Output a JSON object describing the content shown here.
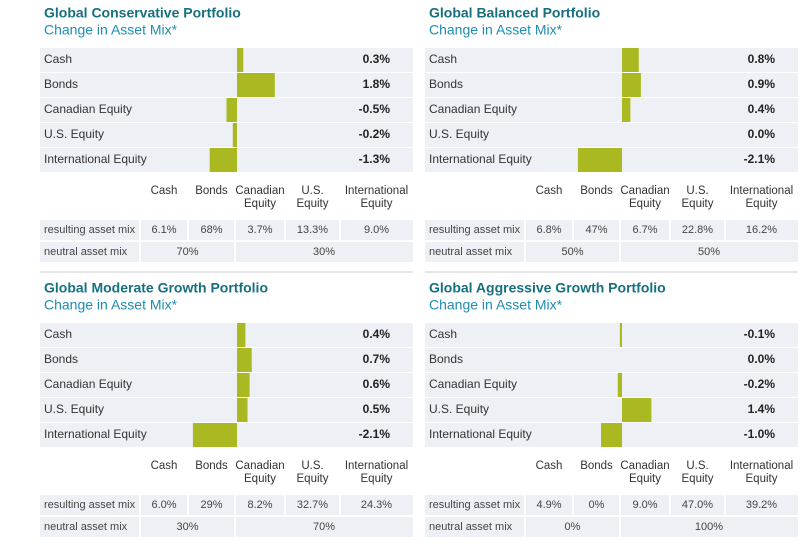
{
  "chart_data": [
    {
      "type": "bar",
      "title": "Global Conservative Portfolio",
      "subtitle": "Change in Asset Mix*",
      "color": "#aab922",
      "categories": [
        "Cash",
        "Bonds",
        "Canadian Equity",
        "U.S. Equity",
        "International Equity"
      ],
      "values": [
        0.3,
        1.8,
        -0.5,
        -0.2,
        -1.3
      ],
      "value_labels": [
        "0.3%",
        "1.8%",
        "-0.5%",
        "-0.2%",
        "-1.3%"
      ],
      "table": {
        "columns": [
          "Cash",
          "Bonds",
          "Canadian Equity",
          "U.S. Equity",
          "International Equity"
        ],
        "rows": [
          {
            "label": "resulting asset mix",
            "cells": [
              "6.1%",
              "68%",
              "3.7%",
              "13.3%",
              "9.0%"
            ]
          },
          {
            "label": "neutral asset mix",
            "cells": [
              "70%",
              "30%"
            ]
          }
        ]
      }
    },
    {
      "type": "bar",
      "title": "Global Balanced Portfolio",
      "subtitle": "Change in Asset Mix*",
      "color": "#aab922",
      "categories": [
        "Cash",
        "Bonds",
        "Canadian Equity",
        "U.S. Equity",
        "International Equity"
      ],
      "values": [
        0.8,
        0.9,
        0.4,
        0.0,
        -2.1
      ],
      "value_labels": [
        "0.8%",
        "0.9%",
        "0.4%",
        "0.0%",
        "-2.1%"
      ],
      "table": {
        "columns": [
          "Cash",
          "Bonds",
          "Canadian Equity",
          "U.S. Equity",
          "International Equity"
        ],
        "rows": [
          {
            "label": "resulting asset mix",
            "cells": [
              "6.8%",
              "47%",
              "6.7%",
              "22.8%",
              "16.2%"
            ]
          },
          {
            "label": "neutral asset mix",
            "cells": [
              "50%",
              "50%"
            ]
          }
        ]
      }
    },
    {
      "type": "bar",
      "title": "Global Moderate Growth Portfolio",
      "subtitle": "Change in Asset Mix*",
      "color": "#aab922",
      "categories": [
        "Cash",
        "Bonds",
        "Canadian Equity",
        "U.S. Equity",
        "International Equity"
      ],
      "values": [
        0.4,
        0.7,
        0.6,
        0.5,
        -2.1
      ],
      "value_labels": [
        "0.4%",
        "0.7%",
        "0.6%",
        "0.5%",
        "-2.1%"
      ],
      "table": {
        "columns": [
          "Cash",
          "Bonds",
          "Canadian Equity",
          "U.S. Equity",
          "International Equity"
        ],
        "rows": [
          {
            "label": "resulting asset mix",
            "cells": [
              "6.0%",
              "29%",
              "8.2%",
              "32.7%",
              "24.3%"
            ]
          },
          {
            "label": "neutral asset mix",
            "cells": [
              "30%",
              "70%"
            ]
          }
        ]
      }
    },
    {
      "type": "bar",
      "title": "Global Aggressive Growth Portfolio",
      "subtitle": "Change in Asset Mix*",
      "color": "#aab922",
      "categories": [
        "Cash",
        "Bonds",
        "Canadian Equity",
        "U.S. Equity",
        "International Equity"
      ],
      "values": [
        -0.1,
        0.0,
        -0.2,
        1.4,
        -1.0
      ],
      "value_labels": [
        "-0.1%",
        "0.0%",
        "-0.2%",
        "1.4%",
        "-1.0%"
      ],
      "table": {
        "columns": [
          "Cash",
          "Bonds",
          "Canadian Equity",
          "U.S. Equity",
          "International Equity"
        ],
        "rows": [
          {
            "label": "resulting asset mix",
            "cells": [
              "4.9%",
              "0%",
              "9.0%",
              "47.0%",
              "39.2%"
            ]
          },
          {
            "label": "neutral asset mix",
            "cells": [
              "0%",
              "100%"
            ]
          }
        ]
      }
    }
  ]
}
